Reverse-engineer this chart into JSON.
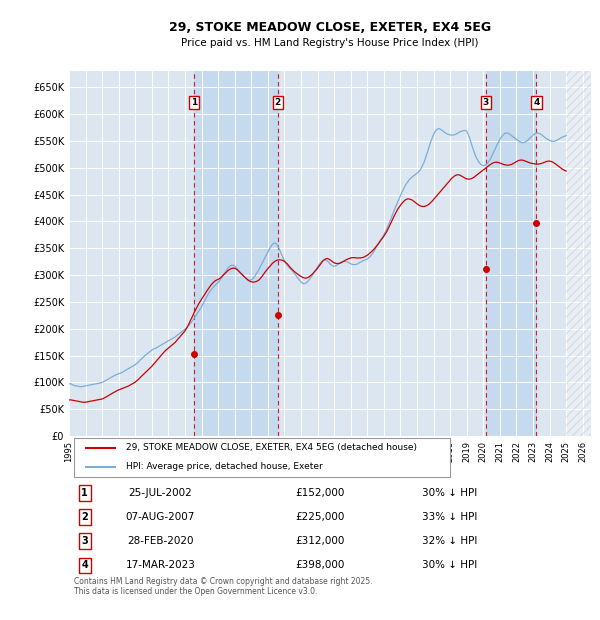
{
  "title": "29, STOKE MEADOW CLOSE, EXETER, EX4 5EG",
  "subtitle": "Price paid vs. HM Land Registry's House Price Index (HPI)",
  "ylim": [
    0,
    680000
  ],
  "yticks": [
    0,
    50000,
    100000,
    150000,
    200000,
    250000,
    300000,
    350000,
    400000,
    450000,
    500000,
    550000,
    600000,
    650000
  ],
  "ytick_labels": [
    "£0",
    "£50K",
    "£100K",
    "£150K",
    "£200K",
    "£250K",
    "£300K",
    "£350K",
    "£400K",
    "£450K",
    "£500K",
    "£550K",
    "£600K",
    "£650K"
  ],
  "xlim_start": 1995.0,
  "xlim_end": 2026.5,
  "hpi_color": "#7aaed6",
  "price_color": "#cc0000",
  "background_color": "#ffffff",
  "plot_bg_color": "#dce6f1",
  "shade_color": "#c5d9ef",
  "grid_color": "#ffffff",
  "sale_events": [
    {
      "num": 1,
      "year": 2002.56,
      "price": 152000,
      "label": "25-JUL-2002",
      "price_str": "£152,000",
      "pct": "30% ↓ HPI"
    },
    {
      "num": 2,
      "year": 2007.6,
      "price": 225000,
      "label": "07-AUG-2007",
      "price_str": "£225,000",
      "pct": "33% ↓ HPI"
    },
    {
      "num": 3,
      "year": 2020.16,
      "price": 312000,
      "label": "28-FEB-2020",
      "price_str": "£312,000",
      "pct": "32% ↓ HPI"
    },
    {
      "num": 4,
      "year": 2023.21,
      "price": 398000,
      "label": "17-MAR-2023",
      "price_str": "£398,000",
      "pct": "30% ↓ HPI"
    }
  ],
  "legend_line1": "29, STOKE MEADOW CLOSE, EXETER, EX4 5EG (detached house)",
  "legend_line2": "HPI: Average price, detached house, Exeter",
  "footnote": "Contains HM Land Registry data © Crown copyright and database right 2025.\nThis data is licensed under the Open Government Licence v3.0.",
  "hpi_data_x": [
    1995.0,
    1995.08,
    1995.17,
    1995.25,
    1995.33,
    1995.42,
    1995.5,
    1995.58,
    1995.67,
    1995.75,
    1995.83,
    1995.92,
    1996.0,
    1996.08,
    1996.17,
    1996.25,
    1996.33,
    1996.42,
    1996.5,
    1996.58,
    1996.67,
    1996.75,
    1996.83,
    1996.92,
    1997.0,
    1997.08,
    1997.17,
    1997.25,
    1997.33,
    1997.42,
    1997.5,
    1997.58,
    1997.67,
    1997.75,
    1997.83,
    1997.92,
    1998.0,
    1998.08,
    1998.17,
    1998.25,
    1998.33,
    1998.42,
    1998.5,
    1998.58,
    1998.67,
    1998.75,
    1998.83,
    1998.92,
    1999.0,
    1999.08,
    1999.17,
    1999.25,
    1999.33,
    1999.42,
    1999.5,
    1999.58,
    1999.67,
    1999.75,
    1999.83,
    1999.92,
    2000.0,
    2000.08,
    2000.17,
    2000.25,
    2000.33,
    2000.42,
    2000.5,
    2000.58,
    2000.67,
    2000.75,
    2000.83,
    2000.92,
    2001.0,
    2001.08,
    2001.17,
    2001.25,
    2001.33,
    2001.42,
    2001.5,
    2001.58,
    2001.67,
    2001.75,
    2001.83,
    2001.92,
    2002.0,
    2002.08,
    2002.17,
    2002.25,
    2002.33,
    2002.42,
    2002.5,
    2002.58,
    2002.67,
    2002.75,
    2002.83,
    2002.92,
    2003.0,
    2003.08,
    2003.17,
    2003.25,
    2003.33,
    2003.42,
    2003.5,
    2003.58,
    2003.67,
    2003.75,
    2003.83,
    2003.92,
    2004.0,
    2004.08,
    2004.17,
    2004.25,
    2004.33,
    2004.42,
    2004.5,
    2004.58,
    2004.67,
    2004.75,
    2004.83,
    2004.92,
    2005.0,
    2005.08,
    2005.17,
    2005.25,
    2005.33,
    2005.42,
    2005.5,
    2005.58,
    2005.67,
    2005.75,
    2005.83,
    2005.92,
    2006.0,
    2006.08,
    2006.17,
    2006.25,
    2006.33,
    2006.42,
    2006.5,
    2006.58,
    2006.67,
    2006.75,
    2006.83,
    2006.92,
    2007.0,
    2007.08,
    2007.17,
    2007.25,
    2007.33,
    2007.42,
    2007.5,
    2007.58,
    2007.67,
    2007.75,
    2007.83,
    2007.92,
    2008.0,
    2008.08,
    2008.17,
    2008.25,
    2008.33,
    2008.42,
    2008.5,
    2008.58,
    2008.67,
    2008.75,
    2008.83,
    2008.92,
    2009.0,
    2009.08,
    2009.17,
    2009.25,
    2009.33,
    2009.42,
    2009.5,
    2009.58,
    2009.67,
    2009.75,
    2009.83,
    2009.92,
    2010.0,
    2010.08,
    2010.17,
    2010.25,
    2010.33,
    2010.42,
    2010.5,
    2010.58,
    2010.67,
    2010.75,
    2010.83,
    2010.92,
    2011.0,
    2011.08,
    2011.17,
    2011.25,
    2011.33,
    2011.42,
    2011.5,
    2011.58,
    2011.67,
    2011.75,
    2011.83,
    2011.92,
    2012.0,
    2012.08,
    2012.17,
    2012.25,
    2012.33,
    2012.42,
    2012.5,
    2012.58,
    2012.67,
    2012.75,
    2012.83,
    2012.92,
    2013.0,
    2013.08,
    2013.17,
    2013.25,
    2013.33,
    2013.42,
    2013.5,
    2013.58,
    2013.67,
    2013.75,
    2013.83,
    2013.92,
    2014.0,
    2014.08,
    2014.17,
    2014.25,
    2014.33,
    2014.42,
    2014.5,
    2014.58,
    2014.67,
    2014.75,
    2014.83,
    2014.92,
    2015.0,
    2015.08,
    2015.17,
    2015.25,
    2015.33,
    2015.42,
    2015.5,
    2015.58,
    2015.67,
    2015.75,
    2015.83,
    2015.92,
    2016.0,
    2016.08,
    2016.17,
    2016.25,
    2016.33,
    2016.42,
    2016.5,
    2016.58,
    2016.67,
    2016.75,
    2016.83,
    2016.92,
    2017.0,
    2017.08,
    2017.17,
    2017.25,
    2017.33,
    2017.42,
    2017.5,
    2017.58,
    2017.67,
    2017.75,
    2017.83,
    2017.92,
    2018.0,
    2018.08,
    2018.17,
    2018.25,
    2018.33,
    2018.42,
    2018.5,
    2018.58,
    2018.67,
    2018.75,
    2018.83,
    2018.92,
    2019.0,
    2019.08,
    2019.17,
    2019.25,
    2019.33,
    2019.42,
    2019.5,
    2019.58,
    2019.67,
    2019.75,
    2019.83,
    2019.92,
    2020.0,
    2020.08,
    2020.17,
    2020.25,
    2020.33,
    2020.42,
    2020.5,
    2020.58,
    2020.67,
    2020.75,
    2020.83,
    2020.92,
    2021.0,
    2021.08,
    2021.17,
    2021.25,
    2021.33,
    2021.42,
    2021.5,
    2021.58,
    2021.67,
    2021.75,
    2021.83,
    2021.92,
    2022.0,
    2022.08,
    2022.17,
    2022.25,
    2022.33,
    2022.42,
    2022.5,
    2022.58,
    2022.67,
    2022.75,
    2022.83,
    2022.92,
    2023.0,
    2023.08,
    2023.17,
    2023.25,
    2023.33,
    2023.42,
    2023.5,
    2023.58,
    2023.67,
    2023.75,
    2023.83,
    2023.92,
    2024.0,
    2024.08,
    2024.17,
    2024.25,
    2024.33,
    2024.42,
    2024.5,
    2024.58,
    2024.67,
    2024.75,
    2024.83,
    2024.92,
    2025.0
  ],
  "hpi_data_y": [
    97000,
    97500,
    96500,
    95000,
    94000,
    93500,
    93000,
    92500,
    92000,
    92000,
    92500,
    93000,
    93500,
    94000,
    94500,
    95000,
    95500,
    96000,
    96500,
    97000,
    97500,
    98000,
    98500,
    99000,
    100000,
    101000,
    102500,
    104000,
    105500,
    107000,
    108500,
    110000,
    111500,
    113000,
    114000,
    115000,
    116000,
    117000,
    118000,
    119500,
    121000,
    122500,
    124000,
    125500,
    127000,
    128500,
    130000,
    131500,
    133000,
    135000,
    137500,
    140000,
    142500,
    145000,
    147500,
    150000,
    152000,
    154000,
    156000,
    158000,
    160000,
    162000,
    163000,
    164000,
    165500,
    167000,
    168500,
    170000,
    171500,
    173000,
    174500,
    176000,
    177500,
    179000,
    180500,
    182000,
    183500,
    185000,
    187000,
    189000,
    191000,
    193000,
    195000,
    197000,
    199000,
    201500,
    204000,
    207000,
    210000,
    213500,
    217000,
    221000,
    225000,
    229000,
    233000,
    237000,
    241000,
    246000,
    251000,
    256000,
    261000,
    265500,
    269500,
    273000,
    276000,
    279000,
    281500,
    284000,
    286500,
    289500,
    293000,
    297000,
    301000,
    305000,
    309000,
    312500,
    315500,
    317500,
    318500,
    318000,
    316500,
    314000,
    311000,
    308000,
    305000,
    302000,
    299000,
    296500,
    294000,
    292000,
    291000,
    290500,
    291000,
    293000,
    296000,
    300000,
    304000,
    308000,
    313000,
    318000,
    323000,
    328000,
    333000,
    338000,
    343000,
    348000,
    352500,
    356500,
    359000,
    360000,
    358500,
    355000,
    350000,
    344000,
    338000,
    332000,
    327000,
    322000,
    318000,
    315000,
    312500,
    310000,
    307000,
    304000,
    300500,
    297000,
    293500,
    290000,
    287000,
    285000,
    284000,
    284500,
    286000,
    288500,
    291500,
    295000,
    299000,
    303000,
    307000,
    311000,
    315000,
    319000,
    322500,
    325500,
    327500,
    328500,
    328000,
    326500,
    324000,
    321000,
    318500,
    317000,
    316500,
    317000,
    318500,
    320500,
    322500,
    324000,
    325000,
    325500,
    325500,
    325000,
    324000,
    322500,
    321000,
    320000,
    319500,
    319500,
    320000,
    321000,
    322500,
    324000,
    325500,
    327000,
    328000,
    329000,
    330000,
    332000,
    334500,
    337500,
    341000,
    345000,
    349500,
    354000,
    358500,
    363000,
    367000,
    371000,
    375000,
    380000,
    385500,
    391500,
    398000,
    404500,
    411000,
    417500,
    424000,
    430000,
    436000,
    442000,
    448000,
    454000,
    459500,
    464500,
    469000,
    473000,
    476500,
    479500,
    482000,
    484000,
    486000,
    488000,
    490000,
    492000,
    495000,
    499000,
    504000,
    510000,
    517000,
    525000,
    533000,
    541000,
    549000,
    556000,
    562000,
    567000,
    570500,
    572500,
    573000,
    572000,
    570000,
    568000,
    566000,
    564500,
    563000,
    562000,
    561500,
    561000,
    561000,
    561500,
    562500,
    564000,
    565500,
    567000,
    568000,
    569000,
    569500,
    570000,
    568000,
    563000,
    556000,
    548000,
    540000,
    532000,
    525000,
    519000,
    514000,
    510000,
    507000,
    505000,
    504000,
    504500,
    506000,
    508500,
    512000,
    516000,
    521000,
    526500,
    532000,
    537500,
    543000,
    548000,
    553000,
    557000,
    560500,
    563000,
    564500,
    565000,
    564500,
    563000,
    561000,
    559000,
    557000,
    555000,
    553000,
    551000,
    549500,
    548000,
    547000,
    547000,
    547500,
    549000,
    551000,
    553500,
    556000,
    558500,
    561000,
    563000,
    564500,
    565000,
    564500,
    563500,
    562000,
    560000,
    558000,
    556000,
    554000,
    552500,
    551000,
    550000,
    549500,
    549500,
    550000,
    551000,
    552500,
    554000,
    555500,
    557000,
    558000,
    559000,
    560000
  ],
  "price_data_x": [
    1995.0,
    1995.08,
    1995.17,
    1995.25,
    1995.33,
    1995.42,
    1995.5,
    1995.58,
    1995.67,
    1995.75,
    1995.83,
    1995.92,
    1996.0,
    1996.08,
    1996.17,
    1996.25,
    1996.33,
    1996.42,
    1996.5,
    1996.58,
    1996.67,
    1996.75,
    1996.83,
    1996.92,
    1997.0,
    1997.08,
    1997.17,
    1997.25,
    1997.33,
    1997.42,
    1997.5,
    1997.58,
    1997.67,
    1997.75,
    1997.83,
    1997.92,
    1998.0,
    1998.08,
    1998.17,
    1998.25,
    1998.33,
    1998.42,
    1998.5,
    1998.58,
    1998.67,
    1998.75,
    1998.83,
    1998.92,
    1999.0,
    1999.08,
    1999.17,
    1999.25,
    1999.33,
    1999.42,
    1999.5,
    1999.58,
    1999.67,
    1999.75,
    1999.83,
    1999.92,
    2000.0,
    2000.08,
    2000.17,
    2000.25,
    2000.33,
    2000.42,
    2000.5,
    2000.58,
    2000.67,
    2000.75,
    2000.83,
    2000.92,
    2001.0,
    2001.08,
    2001.17,
    2001.25,
    2001.33,
    2001.42,
    2001.5,
    2001.58,
    2001.67,
    2001.75,
    2001.83,
    2001.92,
    2002.0,
    2002.08,
    2002.17,
    2002.25,
    2002.33,
    2002.42,
    2002.5,
    2002.58,
    2002.67,
    2002.75,
    2002.83,
    2002.92,
    2003.0,
    2003.08,
    2003.17,
    2003.25,
    2003.33,
    2003.42,
    2003.5,
    2003.58,
    2003.67,
    2003.75,
    2003.83,
    2003.92,
    2004.0,
    2004.08,
    2004.17,
    2004.25,
    2004.33,
    2004.42,
    2004.5,
    2004.58,
    2004.67,
    2004.75,
    2004.83,
    2004.92,
    2005.0,
    2005.08,
    2005.17,
    2005.25,
    2005.33,
    2005.42,
    2005.5,
    2005.58,
    2005.67,
    2005.75,
    2005.83,
    2005.92,
    2006.0,
    2006.08,
    2006.17,
    2006.25,
    2006.33,
    2006.42,
    2006.5,
    2006.58,
    2006.67,
    2006.75,
    2006.83,
    2006.92,
    2007.0,
    2007.08,
    2007.17,
    2007.25,
    2007.33,
    2007.42,
    2007.5,
    2007.58,
    2007.67,
    2007.75,
    2007.83,
    2007.92,
    2008.0,
    2008.08,
    2008.17,
    2008.25,
    2008.33,
    2008.42,
    2008.5,
    2008.58,
    2008.67,
    2008.75,
    2008.83,
    2008.92,
    2009.0,
    2009.08,
    2009.17,
    2009.25,
    2009.33,
    2009.42,
    2009.5,
    2009.58,
    2009.67,
    2009.75,
    2009.83,
    2009.92,
    2010.0,
    2010.08,
    2010.17,
    2010.25,
    2010.33,
    2010.42,
    2010.5,
    2010.58,
    2010.67,
    2010.75,
    2010.83,
    2010.92,
    2011.0,
    2011.08,
    2011.17,
    2011.25,
    2011.33,
    2011.42,
    2011.5,
    2011.58,
    2011.67,
    2011.75,
    2011.83,
    2011.92,
    2012.0,
    2012.08,
    2012.17,
    2012.25,
    2012.33,
    2012.42,
    2012.5,
    2012.58,
    2012.67,
    2012.75,
    2012.83,
    2012.92,
    2013.0,
    2013.08,
    2013.17,
    2013.25,
    2013.33,
    2013.42,
    2013.5,
    2013.58,
    2013.67,
    2013.75,
    2013.83,
    2013.92,
    2014.0,
    2014.08,
    2014.17,
    2014.25,
    2014.33,
    2014.42,
    2014.5,
    2014.58,
    2014.67,
    2014.75,
    2014.83,
    2014.92,
    2015.0,
    2015.08,
    2015.17,
    2015.25,
    2015.33,
    2015.42,
    2015.5,
    2015.58,
    2015.67,
    2015.75,
    2015.83,
    2015.92,
    2016.0,
    2016.08,
    2016.17,
    2016.25,
    2016.33,
    2016.42,
    2016.5,
    2016.58,
    2016.67,
    2016.75,
    2016.83,
    2016.92,
    2017.0,
    2017.08,
    2017.17,
    2017.25,
    2017.33,
    2017.42,
    2017.5,
    2017.58,
    2017.67,
    2017.75,
    2017.83,
    2017.92,
    2018.0,
    2018.08,
    2018.17,
    2018.25,
    2018.33,
    2018.42,
    2018.5,
    2018.58,
    2018.67,
    2018.75,
    2018.83,
    2018.92,
    2019.0,
    2019.08,
    2019.17,
    2019.25,
    2019.33,
    2019.42,
    2019.5,
    2019.58,
    2019.67,
    2019.75,
    2019.83,
    2019.92,
    2020.0,
    2020.08,
    2020.17,
    2020.25,
    2020.33,
    2020.42,
    2020.5,
    2020.58,
    2020.67,
    2020.75,
    2020.83,
    2020.92,
    2021.0,
    2021.08,
    2021.17,
    2021.25,
    2021.33,
    2021.42,
    2021.5,
    2021.58,
    2021.67,
    2021.75,
    2021.83,
    2021.92,
    2022.0,
    2022.08,
    2022.17,
    2022.25,
    2022.33,
    2022.42,
    2022.5,
    2022.58,
    2022.67,
    2022.75,
    2022.83,
    2022.92,
    2023.0,
    2023.08,
    2023.17,
    2023.25,
    2023.33,
    2023.42,
    2023.5,
    2023.58,
    2023.67,
    2023.75,
    2023.83,
    2023.92,
    2024.0,
    2024.08,
    2024.17,
    2024.25,
    2024.33,
    2024.42,
    2024.5,
    2024.58,
    2024.67,
    2024.75,
    2024.83,
    2024.92,
    2025.0
  ],
  "price_data_y": [
    67000,
    67500,
    67000,
    66500,
    66000,
    65500,
    65000,
    64500,
    64000,
    63500,
    63000,
    63000,
    63000,
    63500,
    64000,
    64500,
    65000,
    65500,
    66000,
    66500,
    67000,
    67500,
    68000,
    68500,
    69000,
    70000,
    71500,
    73000,
    74500,
    76000,
    77500,
    79000,
    80500,
    82000,
    83500,
    85000,
    86000,
    87000,
    88000,
    89000,
    90000,
    91000,
    92000,
    93000,
    94500,
    96000,
    97500,
    99000,
    100500,
    102500,
    105000,
    107500,
    110000,
    112500,
    115000,
    117500,
    120000,
    122500,
    125000,
    127500,
    130000,
    133000,
    136000,
    139000,
    142000,
    145000,
    148000,
    151000,
    154000,
    157000,
    159500,
    162000,
    164000,
    166000,
    168000,
    170000,
    172500,
    175000,
    178000,
    181000,
    184000,
    187000,
    190000,
    193000,
    196000,
    200000,
    205000,
    210000,
    215500,
    221000,
    226500,
    232000,
    237000,
    242000,
    246500,
    251000,
    255000,
    259000,
    263000,
    267000,
    271000,
    275000,
    278500,
    282000,
    285000,
    287500,
    289500,
    291000,
    292000,
    293500,
    295500,
    298000,
    300500,
    303000,
    305500,
    308000,
    310000,
    311500,
    312500,
    313000,
    312500,
    311500,
    309500,
    307000,
    304500,
    302000,
    299500,
    297000,
    294500,
    292000,
    290000,
    288500,
    287500,
    287000,
    287000,
    287500,
    288500,
    290000,
    292000,
    295000,
    298500,
    302000,
    305500,
    309000,
    312000,
    315000,
    318000,
    321000,
    323500,
    325500,
    327000,
    328000,
    328500,
    328500,
    328000,
    327000,
    325500,
    323500,
    321000,
    318000,
    315000,
    312000,
    309500,
    307000,
    305000,
    303000,
    301000,
    299000,
    297500,
    296000,
    295000,
    294500,
    294500,
    295500,
    297000,
    299000,
    301500,
    304000,
    307000,
    310000,
    313000,
    316500,
    320000,
    323500,
    326500,
    329000,
    330500,
    331000,
    330000,
    328500,
    326500,
    324500,
    323000,
    322000,
    321500,
    321500,
    322000,
    323000,
    324500,
    326000,
    327500,
    329000,
    330000,
    331000,
    332000,
    332500,
    332500,
    332500,
    332000,
    332000,
    332000,
    332000,
    332500,
    333000,
    334000,
    335500,
    337000,
    339000,
    341000,
    343500,
    346000,
    349000,
    352000,
    355000,
    358500,
    362000,
    365500,
    369000,
    372500,
    376500,
    381000,
    386000,
    391000,
    396500,
    402000,
    407500,
    413000,
    418000,
    422500,
    426500,
    430000,
    433500,
    436500,
    439000,
    441000,
    442000,
    442000,
    441500,
    440500,
    439000,
    437000,
    435000,
    433000,
    431000,
    429500,
    428500,
    428000,
    428000,
    428500,
    429500,
    431000,
    433000,
    435500,
    438000,
    441000,
    444000,
    447000,
    450000,
    453000,
    456000,
    459000,
    462000,
    465000,
    468000,
    471000,
    474000,
    477000,
    480000,
    482500,
    484500,
    486000,
    487000,
    487000,
    486500,
    485000,
    483500,
    482000,
    480500,
    479500,
    479000,
    479000,
    479500,
    480500,
    482000,
    484000,
    486000,
    488000,
    490000,
    492000,
    494000,
    496000,
    498000,
    500000,
    502000,
    504000,
    506000,
    507500,
    509000,
    510000,
    510500,
    510500,
    510000,
    509000,
    508000,
    507000,
    506000,
    505500,
    505000,
    505000,
    505500,
    506000,
    507000,
    508500,
    510000,
    511500,
    513000,
    514000,
    514500,
    514500,
    514000,
    513000,
    512000,
    511000,
    510000,
    509000,
    508500,
    508000,
    507500,
    507000,
    507000,
    507000,
    507500,
    508000,
    509000,
    510000,
    511000,
    512000,
    512500,
    512500,
    512000,
    511000,
    509500,
    508000,
    506000,
    504000,
    502000,
    500000,
    498000,
    496500,
    495000,
    494000
  ]
}
